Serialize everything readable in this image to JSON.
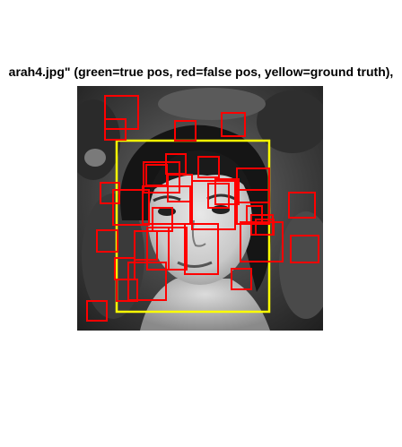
{
  "figure": {
    "title": "arah4.jpg\" (green=true pos, red=false pos, yellow=ground truth),"
  },
  "colors": {
    "ground_truth": "#ffff00",
    "false_positive": "#ff0000",
    "true_positive": "#00ff00"
  },
  "detections": {
    "true_positive_count": 0,
    "false_positive_count": 34,
    "ground_truth_count": 1
  }
}
